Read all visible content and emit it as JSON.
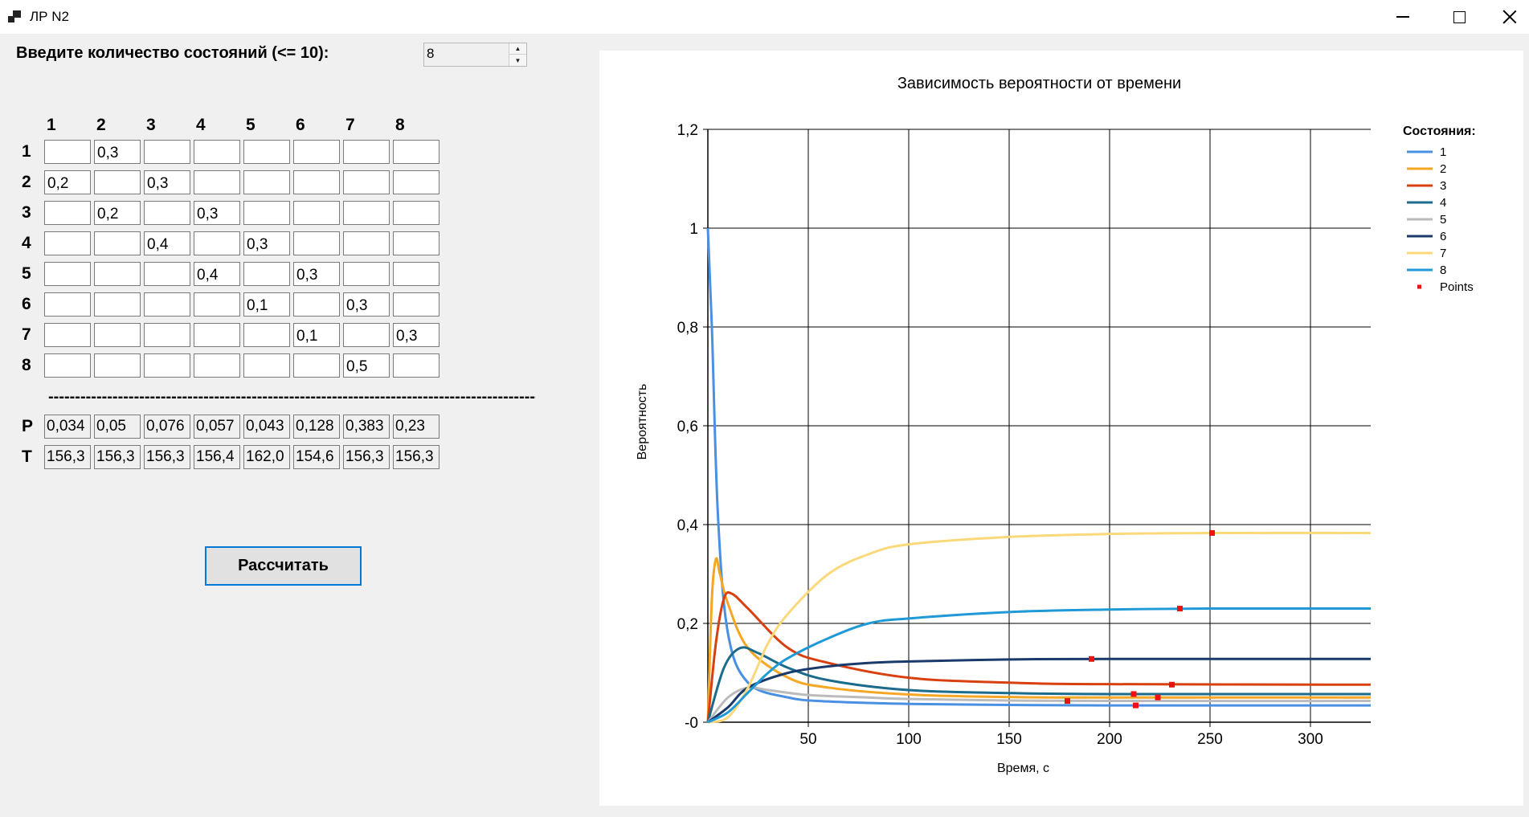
{
  "window": {
    "title": "ЛР N2"
  },
  "form": {
    "prompt": "Введите количество состояний (<= 10):",
    "state_count": "8",
    "column_headers": [
      "1",
      "2",
      "3",
      "4",
      "5",
      "6",
      "7",
      "8"
    ],
    "row_headers": [
      "1",
      "2",
      "3",
      "4",
      "5",
      "6",
      "7",
      "8"
    ],
    "matrix": [
      [
        "",
        "0,3",
        "",
        "",
        "",
        "",
        "",
        ""
      ],
      [
        "0,2",
        "",
        "0,3",
        "",
        "",
        "",
        "",
        ""
      ],
      [
        "",
        "0,2",
        "",
        "0,3",
        "",
        "",
        "",
        ""
      ],
      [
        "",
        "",
        "0,4",
        "",
        "0,3",
        "",
        "",
        ""
      ],
      [
        "",
        "",
        "",
        "0,4",
        "",
        "0,3",
        "",
        ""
      ],
      [
        "",
        "",
        "",
        "",
        "0,1",
        "",
        "0,3",
        ""
      ],
      [
        "",
        "",
        "",
        "",
        "",
        "0,1",
        "",
        "0,3"
      ],
      [
        "",
        "",
        "",
        "",
        "",
        "",
        "0,5",
        ""
      ]
    ],
    "divider": "-----------------------------------------------------------------------------------------------------",
    "p_label": "P",
    "t_label": "T",
    "p_values": [
      "0,034",
      "0,05",
      "0,076",
      "0,057",
      "0,043",
      "0,128",
      "0,383",
      "0,23"
    ],
    "t_values": [
      "156,3",
      "156,3",
      "156,3",
      "156,4",
      "162,0",
      "154,6",
      "156,3",
      "156,3"
    ],
    "calc_button": "Рассчитать"
  },
  "chart_data": {
    "type": "line",
    "title": "Зависимость вероятности от времени",
    "xlabel": "Время, с",
    "ylabel": "Вероятность",
    "xlim": [
      0,
      330
    ],
    "ylim": [
      0,
      1.2
    ],
    "x_ticks": [
      50,
      100,
      150,
      200,
      250,
      300
    ],
    "x_tick_labels": [
      "50",
      "100",
      "150",
      "200",
      "250",
      "300"
    ],
    "y_ticks": [
      0,
      0.2,
      0.4,
      0.6,
      0.8,
      1,
      1.2
    ],
    "y_tick_labels": [
      "-0",
      "0,2",
      "0,4",
      "0,6",
      "0,8",
      "1",
      "1,2"
    ],
    "grid": true,
    "legend_title": "Состояния:",
    "legend_position": "right",
    "series": [
      {
        "name": "1",
        "color": "#4a90e2",
        "x": [
          0,
          2,
          5,
          10,
          20,
          40,
          60,
          100,
          150,
          200,
          330
        ],
        "values": [
          1.0,
          0.8,
          0.42,
          0.18,
          0.08,
          0.05,
          0.042,
          0.037,
          0.035,
          0.034,
          0.034
        ]
      },
      {
        "name": "2",
        "color": "#f5a623",
        "x": [
          0,
          2,
          4,
          6,
          10,
          20,
          40,
          60,
          100,
          150,
          200,
          330
        ],
        "values": [
          0,
          0.25,
          0.33,
          0.3,
          0.24,
          0.15,
          0.09,
          0.07,
          0.056,
          0.051,
          0.05,
          0.05
        ]
      },
      {
        "name": "3",
        "color": "#d94010",
        "x": [
          0,
          4,
          8,
          12,
          20,
          40,
          60,
          100,
          150,
          200,
          330
        ],
        "values": [
          0,
          0.16,
          0.25,
          0.26,
          0.23,
          0.15,
          0.12,
          0.09,
          0.08,
          0.077,
          0.076
        ]
      },
      {
        "name": "4",
        "color": "#1a6b8c",
        "x": [
          0,
          8,
          16,
          25,
          40,
          60,
          100,
          150,
          200,
          330
        ],
        "values": [
          0,
          0.11,
          0.15,
          0.14,
          0.11,
          0.085,
          0.065,
          0.059,
          0.057,
          0.057
        ]
      },
      {
        "name": "5",
        "color": "#bbbbbb",
        "x": [
          0,
          10,
          20,
          30,
          50,
          80,
          100,
          150,
          200,
          330
        ],
        "values": [
          0,
          0.05,
          0.07,
          0.065,
          0.055,
          0.05,
          0.047,
          0.044,
          0.043,
          0.043
        ]
      },
      {
        "name": "6",
        "color": "#1a3a6b",
        "x": [
          0,
          10,
          20,
          40,
          60,
          80,
          100,
          150,
          200,
          330
        ],
        "values": [
          0,
          0.03,
          0.07,
          0.1,
          0.113,
          0.12,
          0.123,
          0.127,
          0.128,
          0.128
        ]
      },
      {
        "name": "7",
        "color": "#fbd97a",
        "x": [
          0,
          10,
          20,
          30,
          40,
          60,
          80,
          100,
          150,
          200,
          250,
          330
        ],
        "values": [
          0,
          0.01,
          0.07,
          0.16,
          0.22,
          0.3,
          0.34,
          0.36,
          0.375,
          0.381,
          0.383,
          0.383
        ]
      },
      {
        "name": "8",
        "color": "#1f9ad6",
        "x": [
          0,
          10,
          20,
          30,
          40,
          60,
          80,
          100,
          150,
          200,
          250,
          330
        ],
        "values": [
          0,
          0.02,
          0.06,
          0.1,
          0.13,
          0.17,
          0.2,
          0.21,
          0.223,
          0.228,
          0.23,
          0.23
        ]
      }
    ],
    "points": {
      "name": "Points",
      "color": "#ee1111",
      "x": [
        179,
        191,
        212,
        213,
        224,
        231,
        235,
        251
      ],
      "values": [
        0.043,
        0.128,
        0.057,
        0.034,
        0.05,
        0.076,
        0.23,
        0.383
      ]
    }
  }
}
